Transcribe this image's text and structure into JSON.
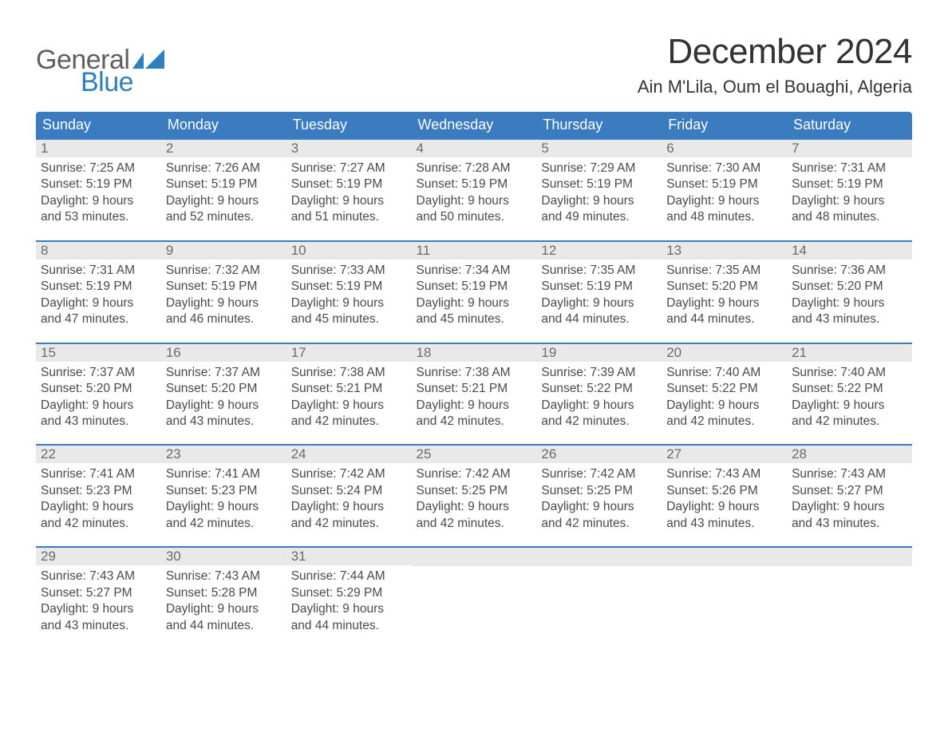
{
  "logo": {
    "line1": "General",
    "line2": "Blue"
  },
  "title": "December 2024",
  "location": "Ain M'Lila, Oum el Bouaghi, Algeria",
  "colors": {
    "header_bg": "#3b7bbf",
    "header_text": "#ffffff",
    "divider": "#3b7bbf",
    "daynum_bg": "#e9e9e9",
    "daynum_color": "#6b6b6b",
    "body_text": "#4a4a4a",
    "title_color": "#333333",
    "logo_gray": "#5f5f5f",
    "logo_blue": "#2f7fbf",
    "background": "#ffffff"
  },
  "type": "calendar-table",
  "layout": {
    "columns": 7,
    "rows": 5,
    "title_fontsize": 44,
    "location_fontsize": 22,
    "header_fontsize": 18,
    "daynum_fontsize": 17,
    "body_fontsize": 15.5
  },
  "weekdays": [
    "Sunday",
    "Monday",
    "Tuesday",
    "Wednesday",
    "Thursday",
    "Friday",
    "Saturday"
  ],
  "labels": {
    "sunrise_prefix": "Sunrise: ",
    "sunset_prefix": "Sunset: ",
    "daylight_prefix": "Daylight: ",
    "hours_word": " hours",
    "and_word": "and ",
    "minutes_word": " minutes."
  },
  "days": [
    {
      "n": 1,
      "sunrise": "7:25 AM",
      "sunset": "5:19 PM",
      "dl_h": 9,
      "dl_m": 53
    },
    {
      "n": 2,
      "sunrise": "7:26 AM",
      "sunset": "5:19 PM",
      "dl_h": 9,
      "dl_m": 52
    },
    {
      "n": 3,
      "sunrise": "7:27 AM",
      "sunset": "5:19 PM",
      "dl_h": 9,
      "dl_m": 51
    },
    {
      "n": 4,
      "sunrise": "7:28 AM",
      "sunset": "5:19 PM",
      "dl_h": 9,
      "dl_m": 50
    },
    {
      "n": 5,
      "sunrise": "7:29 AM",
      "sunset": "5:19 PM",
      "dl_h": 9,
      "dl_m": 49
    },
    {
      "n": 6,
      "sunrise": "7:30 AM",
      "sunset": "5:19 PM",
      "dl_h": 9,
      "dl_m": 48
    },
    {
      "n": 7,
      "sunrise": "7:31 AM",
      "sunset": "5:19 PM",
      "dl_h": 9,
      "dl_m": 48
    },
    {
      "n": 8,
      "sunrise": "7:31 AM",
      "sunset": "5:19 PM",
      "dl_h": 9,
      "dl_m": 47
    },
    {
      "n": 9,
      "sunrise": "7:32 AM",
      "sunset": "5:19 PM",
      "dl_h": 9,
      "dl_m": 46
    },
    {
      "n": 10,
      "sunrise": "7:33 AM",
      "sunset": "5:19 PM",
      "dl_h": 9,
      "dl_m": 45
    },
    {
      "n": 11,
      "sunrise": "7:34 AM",
      "sunset": "5:19 PM",
      "dl_h": 9,
      "dl_m": 45
    },
    {
      "n": 12,
      "sunrise": "7:35 AM",
      "sunset": "5:19 PM",
      "dl_h": 9,
      "dl_m": 44
    },
    {
      "n": 13,
      "sunrise": "7:35 AM",
      "sunset": "5:20 PM",
      "dl_h": 9,
      "dl_m": 44
    },
    {
      "n": 14,
      "sunrise": "7:36 AM",
      "sunset": "5:20 PM",
      "dl_h": 9,
      "dl_m": 43
    },
    {
      "n": 15,
      "sunrise": "7:37 AM",
      "sunset": "5:20 PM",
      "dl_h": 9,
      "dl_m": 43
    },
    {
      "n": 16,
      "sunrise": "7:37 AM",
      "sunset": "5:20 PM",
      "dl_h": 9,
      "dl_m": 43
    },
    {
      "n": 17,
      "sunrise": "7:38 AM",
      "sunset": "5:21 PM",
      "dl_h": 9,
      "dl_m": 42
    },
    {
      "n": 18,
      "sunrise": "7:38 AM",
      "sunset": "5:21 PM",
      "dl_h": 9,
      "dl_m": 42
    },
    {
      "n": 19,
      "sunrise": "7:39 AM",
      "sunset": "5:22 PM",
      "dl_h": 9,
      "dl_m": 42
    },
    {
      "n": 20,
      "sunrise": "7:40 AM",
      "sunset": "5:22 PM",
      "dl_h": 9,
      "dl_m": 42
    },
    {
      "n": 21,
      "sunrise": "7:40 AM",
      "sunset": "5:22 PM",
      "dl_h": 9,
      "dl_m": 42
    },
    {
      "n": 22,
      "sunrise": "7:41 AM",
      "sunset": "5:23 PM",
      "dl_h": 9,
      "dl_m": 42
    },
    {
      "n": 23,
      "sunrise": "7:41 AM",
      "sunset": "5:23 PM",
      "dl_h": 9,
      "dl_m": 42
    },
    {
      "n": 24,
      "sunrise": "7:42 AM",
      "sunset": "5:24 PM",
      "dl_h": 9,
      "dl_m": 42
    },
    {
      "n": 25,
      "sunrise": "7:42 AM",
      "sunset": "5:25 PM",
      "dl_h": 9,
      "dl_m": 42
    },
    {
      "n": 26,
      "sunrise": "7:42 AM",
      "sunset": "5:25 PM",
      "dl_h": 9,
      "dl_m": 42
    },
    {
      "n": 27,
      "sunrise": "7:43 AM",
      "sunset": "5:26 PM",
      "dl_h": 9,
      "dl_m": 43
    },
    {
      "n": 28,
      "sunrise": "7:43 AM",
      "sunset": "5:27 PM",
      "dl_h": 9,
      "dl_m": 43
    },
    {
      "n": 29,
      "sunrise": "7:43 AM",
      "sunset": "5:27 PM",
      "dl_h": 9,
      "dl_m": 43
    },
    {
      "n": 30,
      "sunrise": "7:43 AM",
      "sunset": "5:28 PM",
      "dl_h": 9,
      "dl_m": 44
    },
    {
      "n": 31,
      "sunrise": "7:44 AM",
      "sunset": "5:29 PM",
      "dl_h": 9,
      "dl_m": 44
    }
  ],
  "trailing_empty": 4
}
